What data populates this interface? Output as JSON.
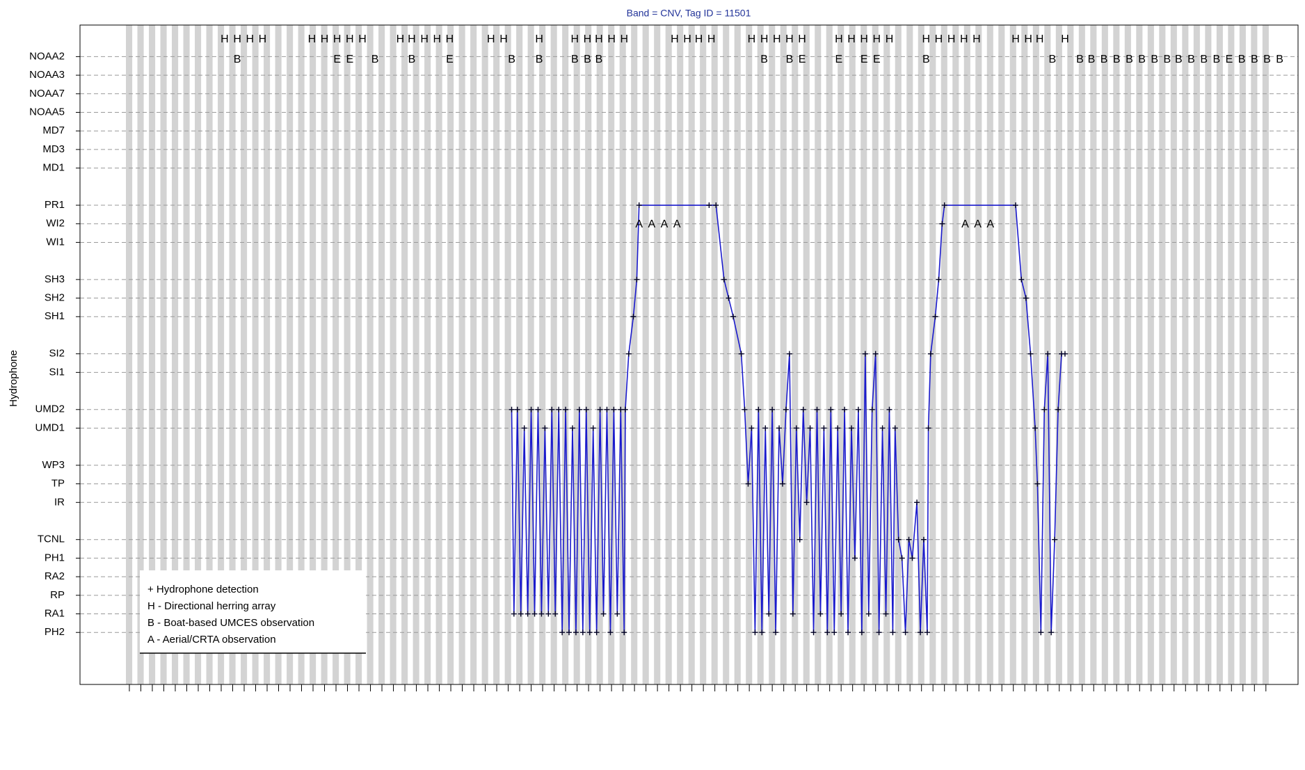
{
  "chart_data": {
    "type": "line",
    "title": "Band = CNV, Tag ID = 11501",
    "y_label": "Hydrophone",
    "xlim": [
      -4.3,
      101.8
    ],
    "ylim": [
      32.7,
      -2.8
    ],
    "yticks": [
      {
        "value": 0,
        "label": "PH2"
      },
      {
        "value": 1,
        "label": "RA1"
      },
      {
        "value": 2,
        "label": "RP"
      },
      {
        "value": 3,
        "label": "RA2"
      },
      {
        "value": 4,
        "label": "PH1"
      },
      {
        "value": 5,
        "label": "TCNL"
      },
      {
        "value": 7,
        "label": "IR"
      },
      {
        "value": 8,
        "label": "TP"
      },
      {
        "value": 9,
        "label": "WP3"
      },
      {
        "value": 11,
        "label": "UMD1"
      },
      {
        "value": 12,
        "label": "UMD2"
      },
      {
        "value": 14,
        "label": "SI1"
      },
      {
        "value": 15,
        "label": "SI2"
      },
      {
        "value": 17,
        "label": "SH1"
      },
      {
        "value": 18,
        "label": "SH2"
      },
      {
        "value": 19,
        "label": "SH3"
      },
      {
        "value": 21,
        "label": "WI1"
      },
      {
        "value": 22,
        "label": "WI2"
      },
      {
        "value": 23,
        "label": "PR1"
      },
      {
        "value": 25,
        "label": "MD1"
      },
      {
        "value": 26,
        "label": "MD3"
      },
      {
        "value": 27,
        "label": "MD7"
      },
      {
        "value": 28,
        "label": "NOAA5"
      },
      {
        "value": 29,
        "label": "NOAA7"
      },
      {
        "value": 30,
        "label": "NOAA3"
      },
      {
        "value": 31,
        "label": "NOAA2"
      }
    ],
    "grid": true,
    "series": [
      {
        "name": "+ Hydrophone detection",
        "color": "#1a1acc",
        "x": [
          33.3,
          33.5,
          33.8,
          34.1,
          34.4,
          34.7,
          35.0,
          35.3,
          35.6,
          35.9,
          36.2,
          36.5,
          36.8,
          37.1,
          37.4,
          37.7,
          38.0,
          38.3,
          38.6,
          38.9,
          39.2,
          39.5,
          39.8,
          40.1,
          40.4,
          40.7,
          41.0,
          41.3,
          41.6,
          41.9,
          42.2,
          42.5,
          42.8,
          43.1,
          43.2,
          43.5,
          43.9,
          44.2,
          44.4,
          50.5,
          51.1,
          51.8,
          52.2,
          52.6,
          53.3,
          53.6,
          53.9,
          54.2,
          54.5,
          54.8,
          55.1,
          55.4,
          55.7,
          56.0,
          56.3,
          56.6,
          56.9,
          57.2,
          57.5,
          57.8,
          58.1,
          58.4,
          58.7,
          59.0,
          59.3,
          59.6,
          59.9,
          60.2,
          60.5,
          60.8,
          61.1,
          61.4,
          61.7,
          62.0,
          62.3,
          62.6,
          62.9,
          63.2,
          63.5,
          63.8,
          64.1,
          64.4,
          64.7,
          65.0,
          65.3,
          65.6,
          65.9,
          66.2,
          66.5,
          66.7,
          67.0,
          67.3,
          67.6,
          67.9,
          68.2,
          68.6,
          68.9,
          69.2,
          69.5,
          69.6,
          69.8,
          70.2,
          70.5,
          70.8,
          71.0,
          77.2,
          77.7,
          78.1,
          78.5,
          78.9,
          79.1,
          79.4,
          79.7,
          80.0,
          80.3,
          80.6,
          80.9,
          81.2,
          81.5
        ],
        "values": [
          "UMD2",
          "RA1",
          "UMD2",
          "RA1",
          "UMD1",
          "RA1",
          "UMD2",
          "RA1",
          "UMD2",
          "RA1",
          "UMD1",
          "RA1",
          "UMD2",
          "RA1",
          "UMD2",
          "PH2",
          "UMD2",
          "PH2",
          "UMD1",
          "PH2",
          "UMD2",
          "PH2",
          "UMD2",
          "PH2",
          "UMD1",
          "PH2",
          "UMD2",
          "RA1",
          "UMD2",
          "PH2",
          "UMD2",
          "RA1",
          "UMD2",
          "PH2",
          "UMD2",
          "SI2",
          "SH1",
          "SH3",
          "PR1",
          "PR1",
          "PR1",
          "SH3",
          "SH2",
          "SH1",
          "SI2",
          "UMD2",
          "TP",
          "UMD1",
          "PH2",
          "UMD2",
          "PH2",
          "UMD1",
          "RA1",
          "UMD2",
          "PH2",
          "UMD1",
          "TP",
          "UMD2",
          "SI2",
          "RA1",
          "UMD1",
          "TCNL",
          "UMD2",
          "IR",
          "UMD1",
          "PH2",
          "UMD2",
          "RA1",
          "UMD1",
          "PH2",
          "UMD2",
          "PH2",
          "UMD1",
          "RA1",
          "UMD2",
          "PH2",
          "UMD1",
          "PH1",
          "UMD2",
          "PH2",
          "SI2",
          "RA1",
          "UMD2",
          "SI2",
          "PH2",
          "UMD1",
          "RA1",
          "UMD2",
          "PH2",
          "UMD1",
          "TCNL",
          "PH1",
          "PH2",
          "TCNL",
          "PH1",
          "IR",
          "PH2",
          "TCNL",
          "PH2",
          "UMD1",
          "SI2",
          "SH1",
          "SH3",
          "WI2",
          "PR1",
          "PR1",
          "SH3",
          "SH2",
          "SI2",
          "UMD1",
          "TP",
          "PH2",
          "UMD2",
          "SI2",
          "PH2",
          "TCNL",
          "UMD2",
          "SI2",
          "SI2"
        ]
      }
    ],
    "legend": [
      "H - Directional herring array",
      "B - Boat-based UMCES observation",
      "A - Aerial/CRTA observation"
    ],
    "letter_rows": [
      {
        "text": "H",
        "x": [
          8.3,
          9.4,
          10.5,
          11.6,
          15.9,
          17.0,
          18.1,
          19.2,
          20.3,
          23.6,
          24.6,
          25.7,
          26.8,
          27.9,
          31.5,
          32.6,
          35.7,
          38.8,
          39.9,
          40.9,
          42.0,
          43.1,
          47.5,
          48.6,
          49.6,
          50.7,
          54.2,
          55.3,
          56.4,
          57.5,
          58.6,
          61.8,
          62.9,
          64.0,
          65.1,
          66.2,
          69.4,
          70.5,
          71.6,
          72.7,
          73.8,
          77.2,
          78.3,
          79.3,
          81.5
        ]
      },
      {
        "text": "B",
        "x": [
          9.4,
          21.4,
          24.6,
          33.3,
          35.7,
          38.8,
          39.9,
          40.9,
          55.3,
          57.5,
          69.4,
          80.4,
          82.8,
          83.8,
          84.9,
          86.0,
          87.1,
          88.2,
          89.3,
          90.4,
          91.4,
          92.5,
          93.6,
          94.7,
          96.9,
          98.0,
          99.1,
          100.2
        ]
      },
      {
        "text": "E",
        "x": [
          18.1,
          19.2,
          27.9,
          58.6,
          61.8,
          64.0,
          65.1,
          95.8
        ]
      },
      {
        "text": "A",
        "x": [
          44.4,
          45.5,
          46.6,
          47.7,
          72.8,
          73.9,
          75.0
        ]
      }
    ]
  }
}
